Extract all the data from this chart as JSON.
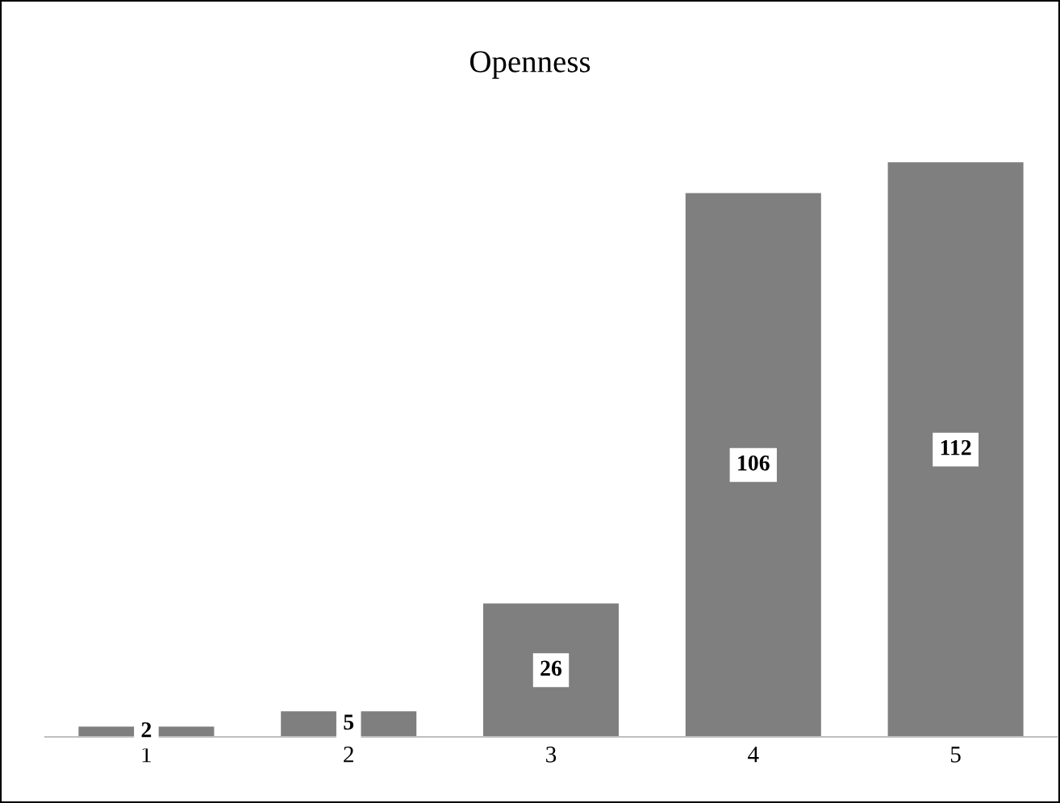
{
  "chart_data": {
    "type": "bar",
    "title": "Openness",
    "categories": [
      "1",
      "2",
      "3",
      "4",
      "5"
    ],
    "values": [
      2,
      5,
      26,
      106,
      112
    ],
    "color": "#7f7f7f",
    "data_labels": true,
    "grid": false,
    "legend": false
  }
}
